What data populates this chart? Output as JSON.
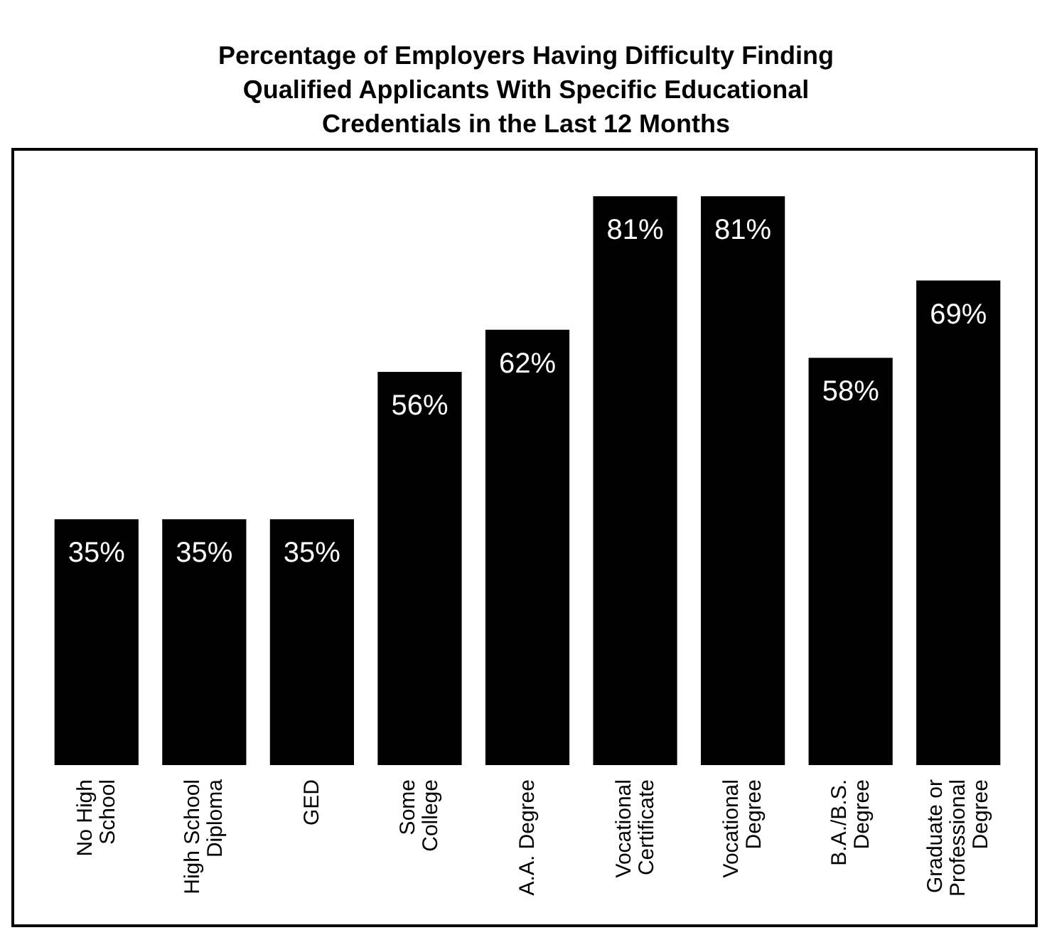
{
  "chart_data": {
    "type": "bar",
    "title": "Percentage of Employers Having Difficulty Finding\nQualified Applicants With Specific Educational\nCredentials in the Last 12 Months",
    "categories": [
      "No High\nSchool",
      "High School\nDiploma",
      "GED",
      "Some\nCollege",
      "A.A. Degree",
      "Vocational\nCertificate",
      "Vocational\nDegree",
      "B.A./B.S.\nDegree",
      "Graduate or\nProfessional\nDegree"
    ],
    "values": [
      35,
      35,
      35,
      56,
      62,
      81,
      81,
      58,
      69
    ],
    "value_labels": [
      "35%",
      "35%",
      "35%",
      "56%",
      "62%",
      "81%",
      "81%",
      "58%",
      "69%"
    ],
    "color": "#000000"
  }
}
